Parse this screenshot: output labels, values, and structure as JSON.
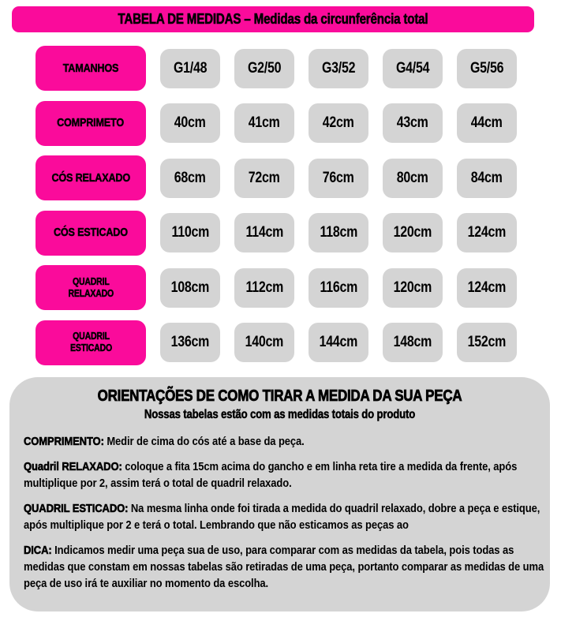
{
  "colors": {
    "pink": "#fa0b9b",
    "gray": "#d4d4d4",
    "text": "#000000"
  },
  "banner": {
    "title": "TABELA DE MEDIDAS – Medidas da circunferência total"
  },
  "table": {
    "header_label": "TAMANHOS",
    "sizes": [
      "G1/48",
      "G2/50",
      "G3/52",
      "G4/54",
      "G5/56"
    ],
    "rows": [
      {
        "label": "TAMANHOS",
        "values": [
          "G1/48",
          "G2/50",
          "G3/52",
          "G4/54",
          "G5/56"
        ]
      },
      {
        "label": "COMPRIMETO",
        "values": [
          "40cm",
          "41cm",
          "42cm",
          "43cm",
          "44cm"
        ]
      },
      {
        "label": "CÓS RELAXADO",
        "values": [
          "68cm",
          "72cm",
          "76cm",
          "80cm",
          "84cm"
        ]
      },
      {
        "label": "CÓS ESTICADO",
        "values": [
          "110cm",
          "114cm",
          "118cm",
          "120cm",
          "124cm"
        ]
      },
      {
        "label": "QUADRIL\nRELAXADO",
        "values": [
          "108cm",
          "112cm",
          "116cm",
          "120cm",
          "124cm"
        ]
      },
      {
        "label": "QUADRIL\nESTICADO",
        "values": [
          "136cm",
          "140cm",
          "144cm",
          "148cm",
          "152cm"
        ]
      }
    ]
  },
  "orientations": {
    "title": "ORIENTAÇÕES DE COMO TIRAR A MEDIDA DA SUA PEÇA",
    "subtitle": "Nossas tabelas estão com as medidas totais do produto",
    "paragraphs": [
      {
        "lead": "COMPRIMENTO:",
        "text": " Medir de cima do cós até a base da peça."
      },
      {
        "lead": "Quadril RELAXADO:",
        "text": " coloque a fita 15cm acima do gancho e em linha reta tire a medida da frente, após multiplique por 2, assim terá o total de quadril relaxado."
      },
      {
        "lead": "QUADRIL ESTICADO:",
        "text": " Na mesma linha onde foi tirada a medida do quadril relaxado, dobre a peça e estique, após multiplique por 2 e terá o total. Lembrando que não esticamos as peças ao"
      },
      {
        "lead": "DICA:",
        "text": " Indicamos medir uma peça sua de uso, para comparar com as medidas da tabela, pois todas as medidas que constam em nossas tabelas são retiradas de uma peça, portanto comparar as medidas de uma peça de uso irá te auxiliar no momento da escolha."
      }
    ]
  }
}
